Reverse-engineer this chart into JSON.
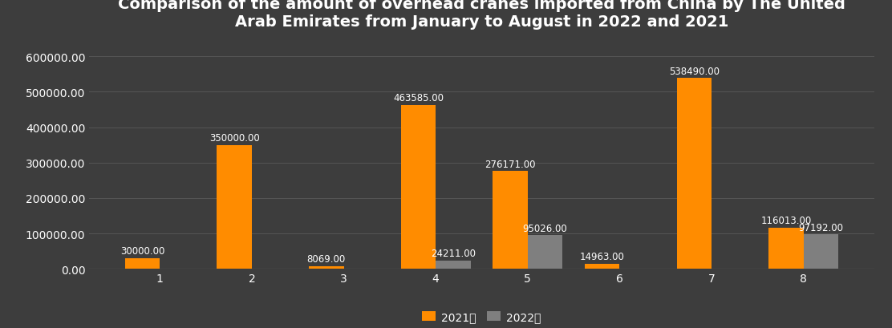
{
  "title": "Comparison of the amount of overhead cranes imported from China by The United\nArab Emirates from January to August in 2022 and 2021",
  "categories": [
    "1",
    "2",
    "3",
    "4",
    "5",
    "6",
    "7",
    "8"
  ],
  "values_2021": [
    30000,
    350000,
    8069,
    463585,
    276171,
    14963,
    538490,
    116013
  ],
  "values_2022": [
    0,
    0,
    0,
    24211,
    95026,
    0,
    0,
    97192
  ],
  "labels_2021": [
    "30000.00",
    "350000.00",
    "8069.00",
    "463585.00",
    "276171.00",
    "14963.00",
    "538490.00",
    "116013.00"
  ],
  "labels_2022": [
    "",
    "",
    "",
    "24211.00",
    "95026.00",
    "",
    "",
    "97192.00"
  ],
  "color_2021": "#FF8C00",
  "color_2022": "#7f7f7f",
  "background_color": "#3d3d3d",
  "text_color": "#ffffff",
  "grid_color": "#555555",
  "legend_2021": "2021年",
  "legend_2022": "2022年",
  "ylim": [
    0,
    650000
  ],
  "yticks": [
    0,
    100000,
    200000,
    300000,
    400000,
    500000,
    600000
  ],
  "bar_width": 0.38,
  "title_fontsize": 14,
  "tick_fontsize": 10,
  "label_fontsize": 8.5,
  "legend_fontsize": 10
}
